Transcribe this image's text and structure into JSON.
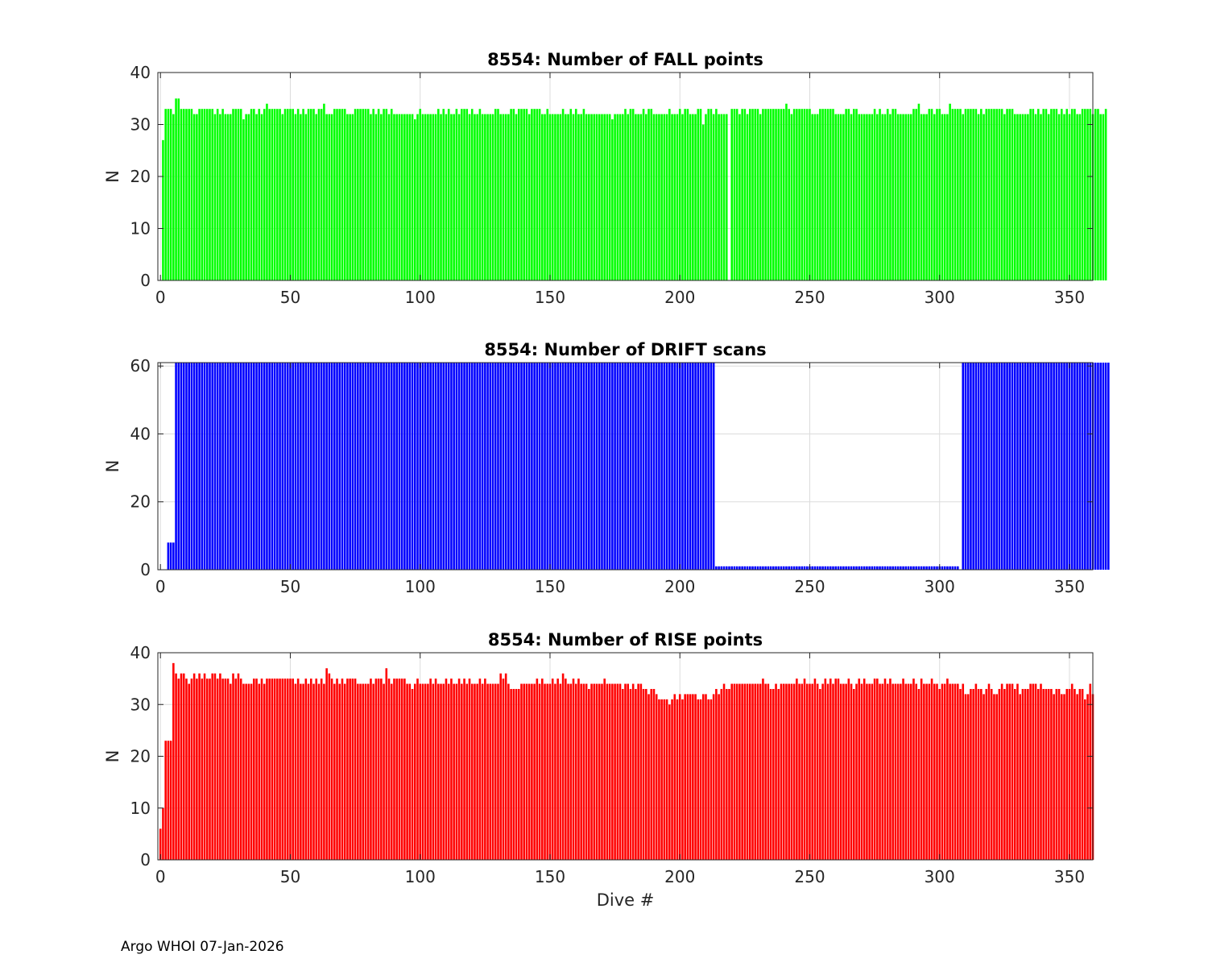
{
  "footer": "Argo WHOI 07-Jan-2026",
  "chart_data": [
    {
      "type": "bar",
      "title": "8554: Number of FALL points",
      "ylabel": "N",
      "xlabel": "",
      "xlim": [
        -1,
        359
      ],
      "ylim": [
        0,
        40
      ],
      "xticks": [
        0,
        50,
        100,
        150,
        200,
        250,
        300,
        350
      ],
      "yticks": [
        0,
        10,
        20,
        30,
        40
      ],
      "grid": true,
      "color": "#00ff00",
      "x_start": 1,
      "values": [
        27,
        33,
        33,
        33,
        32,
        35,
        35,
        33,
        33,
        33,
        33,
        33,
        32,
        32,
        33,
        33,
        33,
        33,
        33,
        33,
        32,
        33,
        32,
        33,
        32,
        32,
        32,
        33,
        33,
        33,
        33,
        31,
        32,
        32,
        33,
        33,
        32,
        33,
        32,
        33,
        34,
        33,
        33,
        33,
        33,
        33,
        32,
        33,
        33,
        33,
        33,
        32,
        33,
        32,
        33,
        32,
        33,
        33,
        33,
        32,
        33,
        33,
        34,
        32,
        32,
        32,
        33,
        33,
        33,
        33,
        33,
        32,
        32,
        32,
        33,
        33,
        33,
        33,
        33,
        33,
        32,
        33,
        32,
        33,
        32,
        33,
        33,
        32,
        33,
        32,
        32,
        32,
        32,
        32,
        32,
        32,
        32,
        31,
        32,
        33,
        32,
        32,
        32,
        32,
        32,
        32,
        33,
        32,
        33,
        32,
        33,
        32,
        32,
        33,
        32,
        33,
        33,
        33,
        32,
        33,
        32,
        32,
        33,
        32,
        32,
        32,
        32,
        32,
        33,
        33,
        32,
        32,
        32,
        32,
        33,
        33,
        32,
        33,
        33,
        33,
        33,
        32,
        33,
        33,
        33,
        33,
        32,
        32,
        33,
        32,
        32,
        32,
        32,
        32,
        33,
        32,
        32,
        33,
        32,
        33,
        32,
        32,
        33,
        32,
        32,
        32,
        32,
        32,
        32,
        32,
        32,
        32,
        32,
        31,
        32,
        32,
        32,
        32,
        33,
        32,
        33,
        33,
        32,
        32,
        32,
        33,
        32,
        33,
        33,
        32,
        32,
        32,
        32,
        32,
        32,
        33,
        32,
        32,
        32,
        33,
        32,
        33,
        33,
        32,
        32,
        32,
        33,
        33,
        30,
        32,
        33,
        33,
        32,
        33,
        32,
        32,
        32,
        32,
        0,
        33,
        33,
        33,
        32,
        33,
        33,
        32,
        33,
        33,
        33,
        33,
        32,
        33,
        33,
        33,
        33,
        33,
        33,
        33,
        33,
        33,
        34,
        33,
        32,
        33,
        33,
        33,
        33,
        33,
        33,
        33,
        32,
        32,
        32,
        33,
        33,
        33,
        33,
        33,
        33,
        32,
        32,
        32,
        32,
        33,
        33,
        32,
        33,
        33,
        32,
        32,
        32,
        32,
        32,
        32,
        33,
        32,
        33,
        32,
        32,
        33,
        32,
        33,
        33,
        32,
        32,
        32,
        32,
        32,
        32,
        33,
        33,
        34,
        32,
        32,
        32,
        33,
        33,
        32,
        33,
        33,
        32,
        32,
        32,
        34,
        33,
        33,
        33,
        33,
        32,
        33,
        33,
        33,
        33,
        33,
        32,
        33,
        32,
        33,
        33,
        33,
        33,
        33,
        33,
        33,
        32,
        33,
        33,
        33,
        32,
        32,
        32,
        32,
        32,
        32,
        33,
        33,
        32,
        33,
        32,
        33,
        33,
        32,
        33,
        33,
        33,
        32,
        33,
        32,
        33,
        32,
        33,
        33,
        32,
        32,
        33,
        33,
        33,
        33,
        32,
        33,
        33,
        32,
        32,
        33
      ]
    },
    {
      "type": "bar",
      "title": "8554: Number of DRIFT scans",
      "ylabel": "N",
      "xlabel": "",
      "xlim": [
        -1,
        359
      ],
      "ylim": [
        0,
        61
      ],
      "xticks": [
        0,
        50,
        100,
        150,
        200,
        250,
        300,
        350
      ],
      "yticks": [
        0,
        20,
        40,
        60
      ],
      "grid": true,
      "color": "#0000ff",
      "x_start": 1,
      "values": [
        0,
        0,
        8,
        8,
        8,
        61,
        61,
        61,
        61,
        61,
        61,
        61,
        61,
        61,
        61,
        61,
        61,
        61,
        61,
        61,
        61,
        61,
        61,
        61,
        61,
        61,
        61,
        61,
        61,
        61,
        61,
        61,
        61,
        61,
        61,
        61,
        61,
        61,
        61,
        61,
        61,
        61,
        61,
        61,
        61,
        61,
        61,
        61,
        61,
        61,
        61,
        61,
        61,
        61,
        61,
        61,
        61,
        61,
        61,
        61,
        61,
        61,
        61,
        61,
        61,
        61,
        61,
        61,
        61,
        61,
        61,
        61,
        61,
        61,
        61,
        61,
        61,
        61,
        61,
        61,
        61,
        61,
        61,
        61,
        61,
        61,
        61,
        61,
        61,
        61,
        61,
        61,
        61,
        61,
        61,
        61,
        61,
        61,
        61,
        61,
        61,
        61,
        61,
        61,
        61,
        61,
        61,
        61,
        61,
        61,
        61,
        61,
        61,
        61,
        61,
        61,
        61,
        61,
        61,
        61,
        61,
        61,
        61,
        61,
        61,
        61,
        61,
        61,
        61,
        61,
        61,
        61,
        61,
        61,
        61,
        61,
        61,
        61,
        61,
        61,
        61,
        61,
        61,
        61,
        61,
        61,
        61,
        61,
        61,
        61,
        61,
        61,
        61,
        61,
        61,
        61,
        61,
        61,
        61,
        61,
        61,
        61,
        61,
        61,
        61,
        61,
        61,
        61,
        61,
        61,
        61,
        61,
        61,
        61,
        61,
        61,
        61,
        61,
        61,
        61,
        61,
        61,
        61,
        61,
        61,
        61,
        61,
        61,
        61,
        61,
        61,
        61,
        61,
        61,
        61,
        61,
        61,
        61,
        61,
        61,
        61,
        61,
        61,
        61,
        61,
        61,
        61,
        61,
        61,
        61,
        61,
        61,
        61,
        1,
        1,
        1,
        1,
        1,
        1,
        1,
        1,
        1,
        1,
        1,
        1,
        1,
        1,
        1,
        1,
        1,
        1,
        1,
        1,
        1,
        1,
        1,
        1,
        1,
        1,
        1,
        1,
        1,
        1,
        1,
        1,
        1,
        1,
        1,
        1,
        1,
        1,
        1,
        1,
        1,
        1,
        1,
        1,
        1,
        1,
        1,
        1,
        1,
        1,
        1,
        1,
        1,
        1,
        1,
        1,
        1,
        1,
        1,
        1,
        1,
        1,
        1,
        1,
        1,
        1,
        1,
        1,
        1,
        1,
        1,
        1,
        1,
        1,
        1,
        1,
        1,
        1,
        1,
        1,
        1,
        1,
        1,
        1,
        1,
        1,
        1,
        1,
        1,
        1,
        1,
        1,
        1,
        1,
        0,
        61,
        61,
        61,
        61,
        61,
        61,
        61,
        61,
        61,
        61,
        61,
        61,
        61,
        61,
        61,
        61,
        61,
        61,
        61,
        61,
        61,
        61,
        61,
        61,
        61,
        61,
        61,
        61,
        61,
        61,
        61,
        61,
        61,
        61,
        61,
        61,
        61,
        61,
        61,
        61,
        61,
        61,
        61,
        61,
        61,
        61,
        61,
        61,
        61,
        61,
        61,
        61,
        61,
        61,
        61,
        61,
        61
      ]
    },
    {
      "type": "bar",
      "title": "8554: Number of RISE points",
      "ylabel": "N",
      "xlabel": "Dive #",
      "xlim": [
        -1,
        359
      ],
      "ylim": [
        0,
        40
      ],
      "xticks": [
        0,
        50,
        100,
        150,
        200,
        250,
        300,
        350
      ],
      "yticks": [
        0,
        10,
        20,
        30,
        40
      ],
      "grid": true,
      "color": "#ff0000",
      "x_start": 0,
      "values": [
        6,
        10,
        23,
        23,
        23,
        38,
        36,
        35,
        36,
        36,
        35,
        34,
        35,
        36,
        35,
        36,
        35,
        36,
        35,
        35,
        36,
        36,
        35,
        36,
        35,
        35,
        35,
        34,
        36,
        35,
        36,
        35,
        34,
        34,
        34,
        34,
        35,
        35,
        34,
        35,
        34,
        35,
        35,
        35,
        35,
        35,
        35,
        35,
        35,
        35,
        35,
        35,
        34,
        35,
        34,
        34,
        35,
        34,
        35,
        34,
        35,
        34,
        35,
        34,
        37,
        36,
        35,
        34,
        35,
        34,
        35,
        34,
        35,
        35,
        35,
        35,
        34,
        34,
        34,
        34,
        34,
        35,
        34,
        35,
        35,
        35,
        34,
        37,
        35,
        34,
        35,
        35,
        35,
        35,
        35,
        34,
        34,
        33,
        34,
        35,
        34,
        34,
        34,
        34,
        35,
        34,
        35,
        34,
        34,
        34,
        35,
        34,
        35,
        34,
        34,
        35,
        34,
        35,
        34,
        35,
        34,
        34,
        34,
        35,
        34,
        35,
        34,
        34,
        34,
        34,
        34,
        36,
        35,
        36,
        34,
        33,
        33,
        33,
        33,
        34,
        34,
        34,
        34,
        34,
        34,
        35,
        34,
        35,
        34,
        34,
        34,
        35,
        34,
        35,
        34,
        36,
        35,
        34,
        34,
        35,
        34,
        35,
        34,
        34,
        34,
        33,
        34,
        34,
        34,
        34,
        34,
        35,
        34,
        34,
        34,
        34,
        34,
        34,
        33,
        34,
        34,
        33,
        34,
        33,
        34,
        34,
        33,
        33,
        32,
        33,
        33,
        32,
        31,
        31,
        31,
        31,
        30,
        31,
        32,
        31,
        32,
        31,
        32,
        32,
        32,
        32,
        32,
        31,
        31,
        32,
        32,
        31,
        31,
        32,
        33,
        32,
        33,
        34,
        33,
        33,
        34,
        34,
        34,
        34,
        34,
        34,
        34,
        34,
        34,
        34,
        34,
        34,
        35,
        34,
        34,
        33,
        33,
        34,
        33,
        34,
        34,
        34,
        34,
        34,
        34,
        35,
        34,
        34,
        35,
        34,
        34,
        34,
        35,
        34,
        33,
        34,
        35,
        34,
        35,
        34,
        35,
        35,
        34,
        34,
        34,
        35,
        34,
        33,
        34,
        35,
        34,
        35,
        34,
        34,
        34,
        35,
        35,
        34,
        34,
        35,
        34,
        35,
        34,
        34,
        34,
        34,
        35,
        34,
        34,
        34,
        35,
        34,
        33,
        35,
        34,
        34,
        34,
        35,
        34,
        34,
        33,
        34,
        34,
        35,
        34,
        34,
        34,
        34,
        33,
        34,
        32,
        32,
        33,
        33,
        34,
        33,
        33,
        32,
        33,
        34,
        33,
        32,
        32,
        33,
        34,
        33,
        34,
        34,
        34,
        33,
        34,
        32,
        33,
        33,
        33,
        34,
        34,
        34,
        33,
        34,
        33,
        33,
        33,
        33,
        32,
        33,
        33,
        32,
        32,
        33,
        33,
        34,
        33,
        32,
        33,
        33,
        31,
        32,
        34,
        32
      ]
    }
  ]
}
